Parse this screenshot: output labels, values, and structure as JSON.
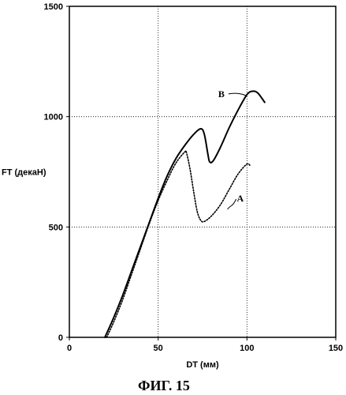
{
  "chart_data": {
    "type": "line",
    "title": "",
    "caption": "ФИГ. 15",
    "xlabel": "DT (мм)",
    "ylabel": "FT (декаН)",
    "xlim": [
      0,
      150
    ],
    "ylim": [
      0,
      1500
    ],
    "x_ticks": [
      "0",
      "50",
      "100",
      "150"
    ],
    "y_ticks": [
      "0",
      "500",
      "1000",
      "1500"
    ],
    "grid": true,
    "series": [
      {
        "name": "B",
        "style": "solid",
        "color": "#000000",
        "points": [
          [
            20,
            0
          ],
          [
            25,
            90
          ],
          [
            30,
            190
          ],
          [
            35,
            300
          ],
          [
            40,
            410
          ],
          [
            45,
            520
          ],
          [
            50,
            630
          ],
          [
            55,
            730
          ],
          [
            60,
            810
          ],
          [
            65,
            870
          ],
          [
            70,
            920
          ],
          [
            74,
            945
          ],
          [
            76,
            920
          ],
          [
            78,
            830
          ],
          [
            79,
            795
          ],
          [
            81,
            800
          ],
          [
            85,
            860
          ],
          [
            90,
            950
          ],
          [
            95,
            1030
          ],
          [
            100,
            1100
          ],
          [
            103,
            1115
          ],
          [
            106,
            1108
          ],
          [
            110,
            1065
          ]
        ]
      },
      {
        "name": "A",
        "style": "dotted",
        "color": "#000000",
        "points": [
          [
            21,
            0
          ],
          [
            25,
            70
          ],
          [
            30,
            170
          ],
          [
            35,
            285
          ],
          [
            40,
            400
          ],
          [
            45,
            515
          ],
          [
            50,
            620
          ],
          [
            55,
            710
          ],
          [
            60,
            790
          ],
          [
            65,
            840
          ],
          [
            66,
            835
          ],
          [
            68,
            760
          ],
          [
            70,
            660
          ],
          [
            72,
            570
          ],
          [
            74,
            530
          ],
          [
            76,
            525
          ],
          [
            80,
            550
          ],
          [
            85,
            600
          ],
          [
            90,
            670
          ],
          [
            95,
            740
          ],
          [
            100,
            785
          ],
          [
            102,
            775
          ]
        ]
      }
    ]
  }
}
